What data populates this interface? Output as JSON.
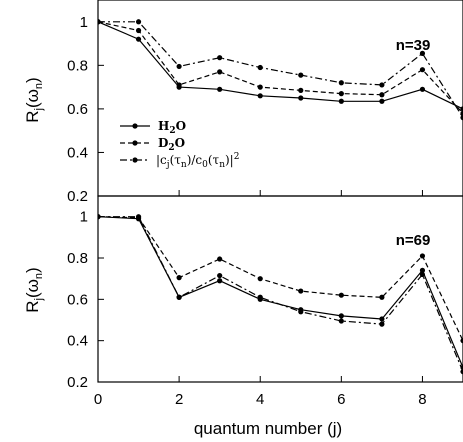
{
  "chart_data": [
    {
      "type": "line",
      "panel_label": "n=39",
      "ylabel_main": "R",
      "ylabel_sub": "j",
      "ylabel_rest": "(ω",
      "ylabel_sub2": "n",
      "ylabel_end": ")",
      "ylim": [
        0.2,
        1.1
      ],
      "yticks": [
        "1",
        "0.8",
        "0.6",
        "0.4",
        "0.2"
      ],
      "ytick_values": [
        1,
        0.8,
        0.6,
        0.4,
        0.2
      ],
      "x": [
        0,
        1,
        2,
        3,
        4,
        5,
        6,
        7,
        8,
        9
      ],
      "series": [
        {
          "name": "H2O",
          "style": "solid",
          "values": [
            1.0,
            0.92,
            0.7,
            0.69,
            0.66,
            0.65,
            0.635,
            0.635,
            0.69,
            0.6
          ]
        },
        {
          "name": "D2O",
          "style": "dashed",
          "values": [
            1.0,
            0.96,
            0.71,
            0.77,
            0.7,
            0.685,
            0.67,
            0.665,
            0.78,
            0.58
          ]
        },
        {
          "name": "|cj(τn)/c0(τn)|2",
          "style": "dashdot",
          "values": [
            1.0,
            1.0,
            0.795,
            0.835,
            0.79,
            0.755,
            0.72,
            0.71,
            0.855,
            0.56
          ]
        }
      ],
      "legend": {
        "position": "left",
        "items": [
          {
            "main": "H",
            "sub": "2",
            "rest": "O"
          },
          {
            "main": "D",
            "sub": "2",
            "rest": "O"
          },
          {
            "main": "|c",
            "sub": "j",
            "rest": "(τ",
            "sub2": "n",
            "rest2": ")/c",
            "sub3": "0",
            "rest3": "(τ",
            "sub4": "n",
            "rest4": ")|",
            "sup": "2"
          }
        ]
      }
    },
    {
      "type": "line",
      "panel_label": "n=69",
      "ylabel_main": "R",
      "ylabel_sub": "j",
      "ylabel_rest": "(ω",
      "ylabel_sub2": "n",
      "ylabel_end": ")",
      "ylim": [
        0.2,
        1.1
      ],
      "yticks": [
        "1",
        "0.8",
        "0.6",
        "0.4",
        "0.2"
      ],
      "ytick_values": [
        1,
        0.8,
        0.6,
        0.4,
        0.2
      ],
      "xlabel": "quantum number (j)",
      "xlim": [
        0,
        9
      ],
      "xticks": [
        "0",
        "2",
        "4",
        "6",
        "8"
      ],
      "xtick_values": [
        0,
        2,
        4,
        6,
        8
      ],
      "x": [
        0,
        1,
        2,
        3,
        4,
        5,
        6,
        7,
        8,
        9
      ],
      "series": [
        {
          "name": "H2O",
          "style": "solid",
          "values": [
            1.0,
            0.99,
            0.61,
            0.69,
            0.6,
            0.55,
            0.52,
            0.505,
            0.74,
            0.27
          ]
        },
        {
          "name": "D2O",
          "style": "dashed",
          "values": [
            1.0,
            0.995,
            0.705,
            0.795,
            0.7,
            0.64,
            0.62,
            0.61,
            0.81,
            0.4
          ]
        },
        {
          "name": "|cj(τn)/c0(τn)|2",
          "style": "dashdot",
          "values": [
            1.0,
            1.0,
            0.61,
            0.715,
            0.61,
            0.54,
            0.495,
            0.48,
            0.72,
            0.25
          ]
        }
      ]
    }
  ]
}
